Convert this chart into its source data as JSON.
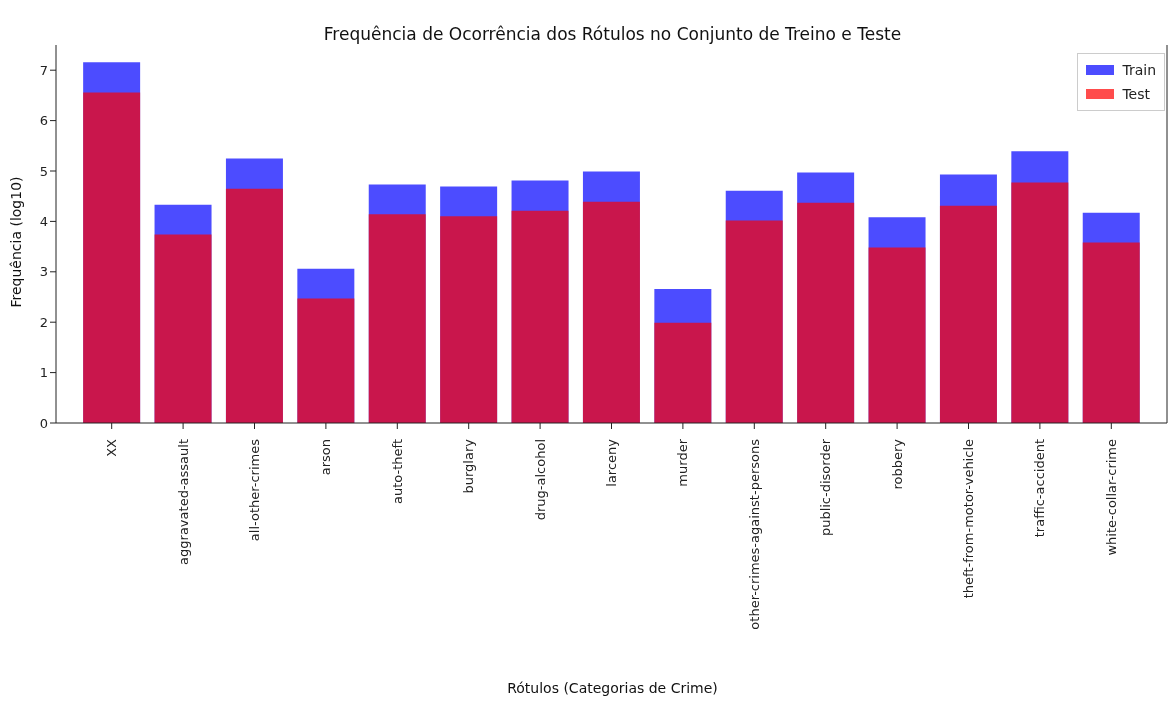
{
  "chart_data": {
    "type": "bar",
    "title": "Frequência de Ocorrência dos Rótulos no Conjunto de Treino e Teste",
    "xlabel": "Rótulos (Categorias de Crime)",
    "ylabel": "Frequência (log10)",
    "categories": [
      "XX",
      "aggravated-assault",
      "all-other-crimes",
      "arson",
      "auto-theft",
      "burglary",
      "drug-alcohol",
      "larceny",
      "murder",
      "other-crimes-against-persons",
      "public-disorder",
      "robbery",
      "theft-from-motor-vehicle",
      "traffic-accident",
      "white-collar-crime"
    ],
    "series": [
      {
        "name": "Train",
        "color": "#0000ff",
        "values": [
          7.16,
          4.33,
          5.25,
          3.06,
          4.73,
          4.69,
          4.81,
          4.99,
          2.66,
          4.61,
          4.97,
          4.08,
          4.93,
          5.39,
          4.17
        ]
      },
      {
        "name": "Test",
        "color": "#ff0000",
        "values": [
          6.56,
          3.74,
          4.65,
          2.47,
          4.14,
          4.1,
          4.21,
          4.39,
          1.99,
          4.02,
          4.37,
          3.48,
          4.31,
          4.77,
          3.58
        ]
      }
    ],
    "ylim": [
      0,
      7.5
    ],
    "yticks": [
      0,
      1,
      2,
      3,
      4,
      5,
      6,
      7
    ],
    "grid": false,
    "legend": "top right"
  }
}
